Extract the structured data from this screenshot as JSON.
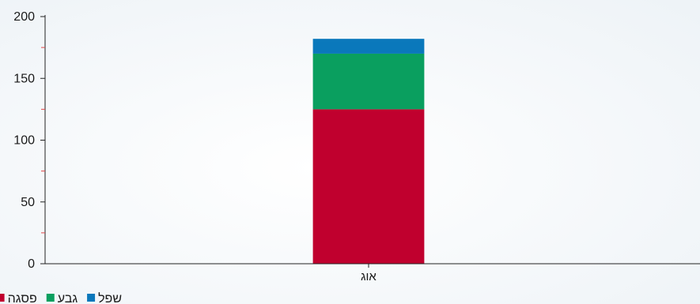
{
  "chart_data": {
    "type": "bar",
    "stacked": true,
    "categories": [
      "אוג"
    ],
    "series": [
      {
        "name": "פסגה",
        "values": [
          125
        ],
        "color": "#c0002e"
      },
      {
        "name": "גבע",
        "values": [
          45
        ],
        "color": "#0a9f5f"
      },
      {
        "name": "שפל",
        "values": [
          12
        ],
        "color": "#0a78bb"
      }
    ],
    "ylim": [
      0,
      200
    ],
    "yticks": [
      0,
      50,
      100,
      150,
      200
    ],
    "grid": false,
    "legend_position": "bottom-left"
  }
}
